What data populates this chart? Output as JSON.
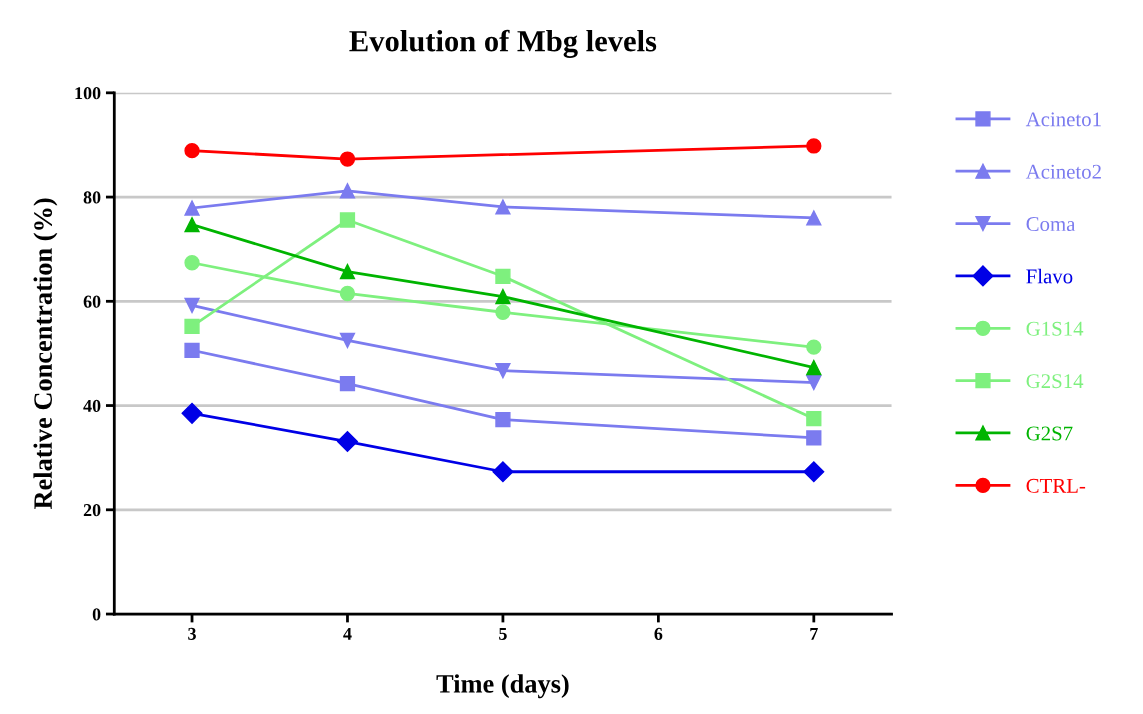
{
  "chart_data": {
    "type": "line",
    "title": "Evolution of Mbg levels",
    "xlabel": "Time (days)",
    "ylabel": "Relative Concentration (%)",
    "x": [
      3,
      4,
      5,
      7
    ],
    "xlim": [
      2.5,
      7.5
    ],
    "xticks": [
      3,
      4,
      5,
      6,
      7
    ],
    "ylim": [
      0,
      100
    ],
    "yticks": [
      0,
      20,
      40,
      60,
      80,
      100
    ],
    "grid": "y",
    "legend": "right",
    "series": [
      {
        "name": "Acineto1",
        "color": "#7b7bef",
        "marker": "square",
        "values": [
          50.6,
          44.2,
          37.3,
          33.8
        ]
      },
      {
        "name": "Acineto2",
        "color": "#7b7bef",
        "marker": "triangle",
        "values": [
          77.9,
          81.2,
          78.1,
          76.0
        ]
      },
      {
        "name": "Coma",
        "color": "#7b7bef",
        "marker": "triangle_down",
        "values": [
          59.2,
          52.5,
          46.7,
          44.4
        ]
      },
      {
        "name": "Flavo",
        "color": "#0000e6",
        "marker": "diamond",
        "values": [
          38.5,
          33.1,
          27.3,
          27.3
        ]
      },
      {
        "name": "G1S14",
        "color": "#7ef07e",
        "marker": "circle",
        "values": [
          67.4,
          61.5,
          57.9,
          51.2
        ]
      },
      {
        "name": "G2S14",
        "color": "#7ef07e",
        "marker": "square",
        "values": [
          55.2,
          75.6,
          64.8,
          37.5
        ]
      },
      {
        "name": "G2S7",
        "color": "#00b400",
        "marker": "triangle",
        "values": [
          74.7,
          65.7,
          60.9,
          47.3
        ]
      },
      {
        "name": "CTRL-",
        "color": "#ff0000",
        "marker": "circle",
        "values": [
          88.9,
          87.3,
          null,
          89.8
        ]
      }
    ]
  }
}
